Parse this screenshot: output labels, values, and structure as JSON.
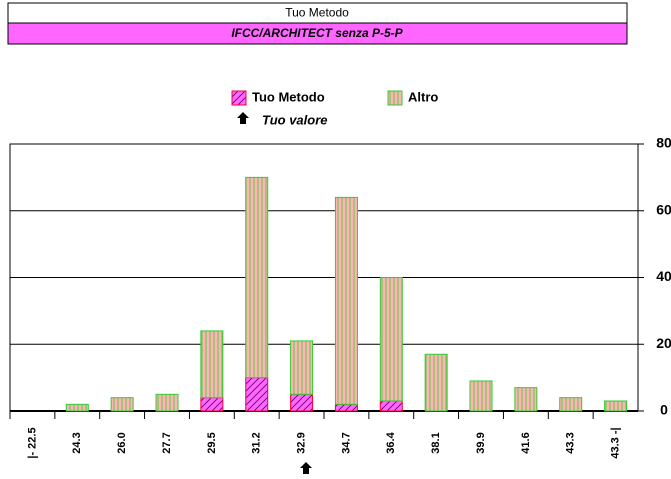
{
  "header": {
    "method": "Tuo Metodo",
    "assay": "IFCC/ARCHITECT senza P-5-P"
  },
  "chart_data": {
    "type": "bar",
    "stacked": true,
    "annotation": "Tuo valore",
    "categories": [
      "|- 22.5",
      "24.3",
      "26.0",
      "27.7",
      "29.5",
      "31.2",
      "32.9",
      "34.7",
      "36.4",
      "38.1",
      "39.9",
      "41.6",
      "43.3",
      "43.3 -|"
    ],
    "series": [
      {
        "name": "Tuo Metodo",
        "color": "#cc0099",
        "values": [
          0,
          0,
          0,
          0,
          4,
          10,
          5,
          2,
          3,
          0,
          0,
          0,
          0,
          0
        ]
      },
      {
        "name": "Altro",
        "color": "#33cc33",
        "values": [
          0,
          2,
          4,
          5,
          20,
          60,
          16,
          62,
          37,
          17,
          9,
          7,
          4,
          3
        ]
      }
    ],
    "ylim": [
      0,
      80
    ],
    "yticks": [
      0,
      20,
      40,
      60,
      80
    ],
    "grid": true
  }
}
